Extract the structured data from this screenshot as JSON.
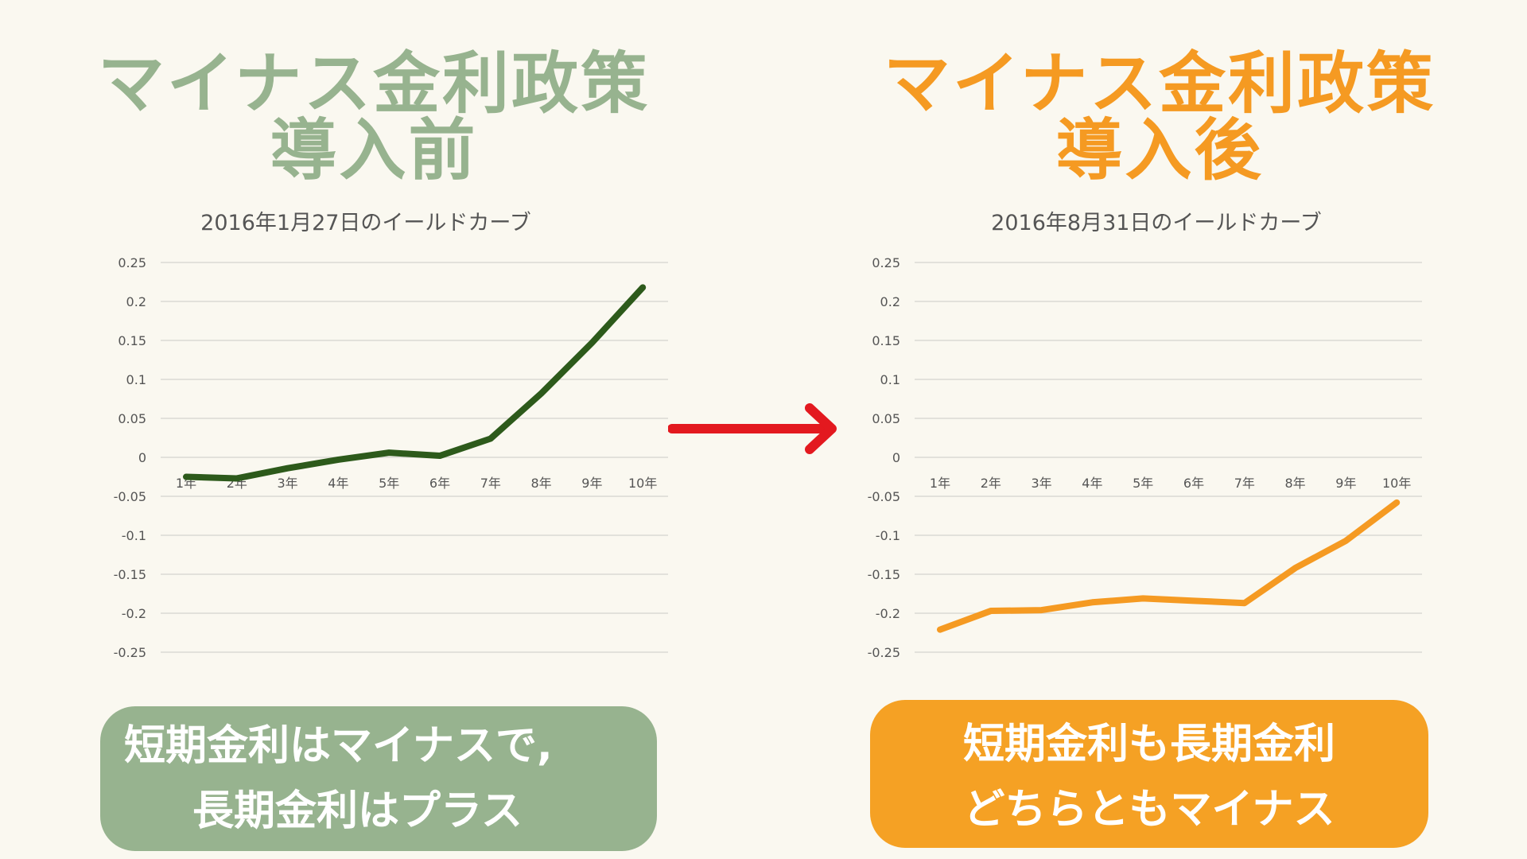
{
  "left": {
    "heading_line1": "マイナス金利政策",
    "heading_line2": "導入前",
    "callout_line1": "短期金利はマイナスで,",
    "callout_line2": "長期金利はプラス"
  },
  "right": {
    "heading_line1": "マイナス金利政策",
    "heading_line2": "導入後",
    "callout_line1": "短期金利も長期金利",
    "callout_line2": "どちらともマイナス"
  },
  "colors": {
    "left_accent": "#97b38f",
    "left_line": "#2d5a1b",
    "right_accent": "#f59a22",
    "arrow": "#e3191f"
  },
  "chart_data": [
    {
      "type": "line",
      "title": "2016年1月27日のイールドカーブ",
      "categories": [
        "1年",
        "2年",
        "3年",
        "4年",
        "5年",
        "6年",
        "7年",
        "8年",
        "9年",
        "10年"
      ],
      "series": [
        {
          "values": [
            -0.025,
            -0.027,
            -0.014,
            -0.003,
            0.006,
            0.002,
            0.024,
            0.082,
            0.147,
            0.218
          ]
        }
      ],
      "yticks": [
        "0.25",
        "0.2",
        "0.15",
        "0.1",
        "0.05",
        "0",
        "-0.05",
        "-0.1",
        "-0.15",
        "-0.2",
        "-0.25"
      ],
      "ylim": [
        -0.25,
        0.25
      ],
      "grid": true
    },
    {
      "type": "line",
      "title": "2016年8月31日のイールドカーブ",
      "categories": [
        "1年",
        "2年",
        "3年",
        "4年",
        "5年",
        "6年",
        "7年",
        "8年",
        "9年",
        "10年"
      ],
      "series": [
        {
          "values": [
            -0.221,
            -0.197,
            -0.196,
            -0.186,
            -0.181,
            -0.184,
            -0.187,
            -0.142,
            -0.107,
            -0.058
          ]
        }
      ],
      "yticks": [
        "0.25",
        "0.2",
        "0.15",
        "0.1",
        "0.05",
        "0",
        "-0.05",
        "-0.1",
        "-0.15",
        "-0.2",
        "-0.25"
      ],
      "ylim": [
        -0.25,
        0.25
      ],
      "grid": true
    }
  ]
}
